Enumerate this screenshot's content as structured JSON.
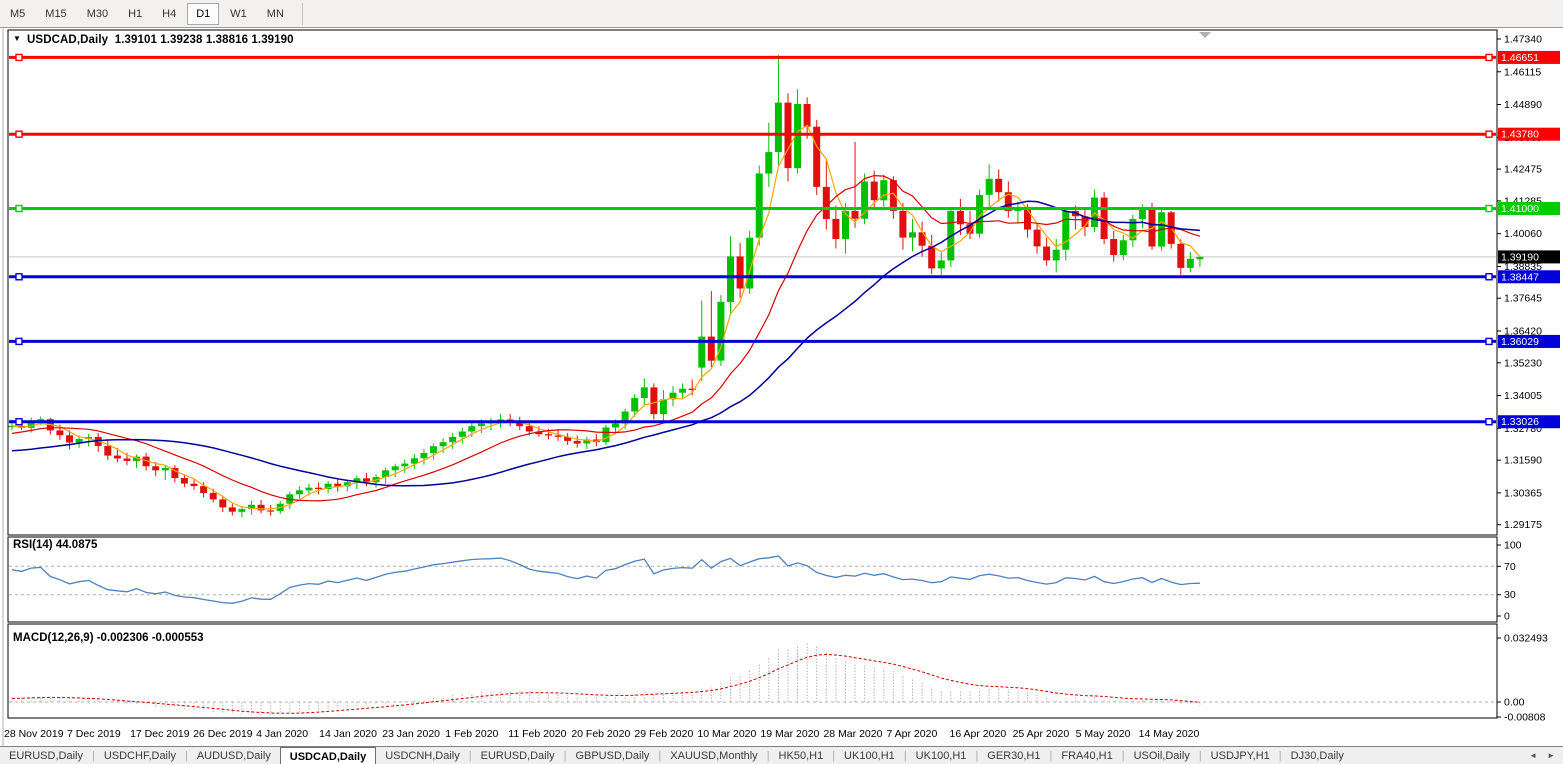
{
  "toolbar": {
    "timeframes": [
      "M5",
      "M15",
      "M30",
      "H1",
      "H4",
      "D1",
      "W1",
      "MN"
    ],
    "active": "D1"
  },
  "chart": {
    "symbol": "USDCAD,Daily",
    "ohlc_text": "1.39101 1.39238 1.38816 1.39190"
  },
  "indicators": {
    "rsi_label": "RSI(14) 44.0875",
    "macd_label": "MACD(12,26,9) -0.002306 -0.000553"
  },
  "price_axis": {
    "ticks": [
      "1.47340",
      "1.46115",
      "1.44890",
      "1.43665",
      "1.42475",
      "1.41285",
      "1.40060",
      "1.38835",
      "1.37645",
      "1.36420",
      "1.35230",
      "1.34005",
      "1.32780",
      "1.31590",
      "1.30365",
      "1.29175"
    ],
    "current": {
      "label": "1.39190",
      "value": 1.3919,
      "bg": "#000000",
      "text_color": "#ffffff"
    }
  },
  "rsi_axis": {
    "ticks": [
      100,
      70,
      30,
      0
    ],
    "levels": [
      70,
      30
    ]
  },
  "macd_axis": {
    "ticks": [
      {
        "label": "0.032493",
        "value": 0.032493
      },
      {
        "label": "0.00",
        "value": 0
      },
      {
        "label": "-0.00808",
        "value": -0.00808
      }
    ]
  },
  "date_axis": {
    "labels": [
      "28 Nov 2019",
      "7 Dec 2019",
      "17 Dec 2019",
      "26 Dec 2019",
      "4 Jan 2020",
      "14 Jan 2020",
      "23 Jan 2020",
      "1 Feb 2020",
      "11 Feb 2020",
      "20 Feb 2020",
      "29 Feb 2020",
      "10 Mar 2020",
      "19 Mar 2020",
      "28 Mar 2020",
      "7 Apr 2020",
      "16 Apr 2020",
      "25 Apr 2020",
      "5 May 2020",
      "14 May 2020"
    ]
  },
  "tabs": {
    "items": [
      "EURUSD,Daily",
      "USDCHF,Daily",
      "AUDUSD,Daily",
      "USDCAD,Daily",
      "USDCNH,Daily",
      "EURUSD,Daily",
      "GBPUSD,Daily",
      "XAUUSD,Monthly",
      "HK50,H1",
      "UK100,H1",
      "UK100,H1",
      "GER30,H1",
      "FRA40,H1",
      "USOil,Daily",
      "USDJPY,H1",
      "DJ30,Daily"
    ],
    "active_index": 3
  },
  "colors": {
    "bull": "#00c000",
    "bear": "#e01010",
    "ma_fast": "#ffa500",
    "ma_medium": "#dc0000",
    "ma_slow": "#0000a0",
    "rsi_line": "#4f81bd",
    "macd_hist": "#b4b4b4",
    "macd_signal": "#d00000",
    "current_line": "#c8c8c8",
    "level_dash": "#b0b0b0"
  },
  "chart_data": {
    "type": "candlestick",
    "symbol": "USDCAD",
    "timeframe": "Daily",
    "title": "USDCAD,Daily 1.39101 1.39238 1.38816 1.39190",
    "last_ohlc": {
      "open": 1.39101,
      "high": 1.39238,
      "low": 1.38816,
      "close": 1.3919
    },
    "ylim": [
      1.288,
      1.4768
    ],
    "x_range": [
      "28 Nov 2019",
      "20 May 2020"
    ],
    "h_lines": [
      {
        "label": "1.46651",
        "value": 1.46651,
        "color": "#ff0000"
      },
      {
        "label": "1.43780",
        "value": 1.4378,
        "color": "#ff0000"
      },
      {
        "label": "1.41000",
        "value": 1.41,
        "color": "#00cc00"
      },
      {
        "label": "1.38447",
        "value": 1.38447,
        "color": "#0000d8"
      },
      {
        "label": "1.36029",
        "value": 1.36029,
        "color": "#0000d8"
      },
      {
        "label": "1.33026",
        "value": 1.33026,
        "color": "#0000d8"
      }
    ],
    "moving_averages": [
      {
        "name": "fast",
        "period": 4,
        "color": "#ffa500",
        "width": 1.2
      },
      {
        "name": "medium",
        "period": 13,
        "color": "#dc0000",
        "width": 1.2
      },
      {
        "name": "slow",
        "period": 30,
        "color": "#0000a0",
        "width": 1.5
      }
    ],
    "rsi": {
      "period": 14,
      "last": 44.0875
    },
    "macd": {
      "fast": 12,
      "slow": 26,
      "signal": 9,
      "last": -0.002306,
      "last_signal": -0.000553,
      "max": 0.032493,
      "min": -0.00808
    },
    "seed_closes": [
      1.324,
      1.3255,
      1.327,
      1.3285,
      1.329,
      1.33,
      1.331,
      1.3295,
      1.328,
      1.326,
      1.324,
      1.322,
      1.32,
      1.318,
      1.315,
      1.312,
      1.309,
      1.3075,
      1.308,
      1.3095,
      1.311,
      1.313,
      1.315,
      1.3165,
      1.3175,
      1.316,
      1.3175,
      1.319,
      1.321,
      1.323,
      1.322,
      1.3235,
      1.325,
      1.3245,
      1.326,
      1.3275,
      1.329,
      1.33,
      1.3285,
      1.3278
    ],
    "candles": [
      [
        1.3285,
        1.331,
        1.327,
        1.3287
      ],
      [
        1.3287,
        1.3305,
        1.3272,
        1.328
      ],
      [
        1.328,
        1.3318,
        1.3262,
        1.3305
      ],
      [
        1.3305,
        1.3322,
        1.329,
        1.3312
      ],
      [
        1.3312,
        1.3317,
        1.3255,
        1.327
      ],
      [
        1.327,
        1.3292,
        1.3235,
        1.3252
      ],
      [
        1.3252,
        1.327,
        1.32,
        1.3225
      ],
      [
        1.3225,
        1.3252,
        1.3205,
        1.3238
      ],
      [
        1.3238,
        1.3257,
        1.321,
        1.3246
      ],
      [
        1.3246,
        1.326,
        1.319,
        1.3212
      ],
      [
        1.3212,
        1.3232,
        1.316,
        1.3176
      ],
      [
        1.3176,
        1.3205,
        1.315,
        1.3165
      ],
      [
        1.3165,
        1.3186,
        1.314,
        1.3156
      ],
      [
        1.3156,
        1.318,
        1.313,
        1.3172
      ],
      [
        1.3172,
        1.3186,
        1.312,
        1.3136
      ],
      [
        1.3136,
        1.3152,
        1.31,
        1.3121
      ],
      [
        1.3121,
        1.3142,
        1.3085,
        1.313
      ],
      [
        1.313,
        1.314,
        1.3075,
        1.3092
      ],
      [
        1.3092,
        1.3106,
        1.3058,
        1.3071
      ],
      [
        1.3071,
        1.3086,
        1.3048,
        1.3062
      ],
      [
        1.3062,
        1.3076,
        1.302,
        1.3036
      ],
      [
        1.3036,
        1.3052,
        1.3,
        1.3012
      ],
      [
        1.3012,
        1.3026,
        1.2965,
        1.2982
      ],
      [
        1.2982,
        1.2996,
        1.2952,
        1.2966
      ],
      [
        1.2966,
        1.2986,
        1.2945,
        1.2976
      ],
      [
        1.2976,
        1.3006,
        1.2955,
        1.2992
      ],
      [
        1.2992,
        1.301,
        1.296,
        1.2971
      ],
      [
        1.2971,
        1.2991,
        1.2951,
        1.2969
      ],
      [
        1.2969,
        1.3006,
        1.2958,
        1.2996
      ],
      [
        1.2996,
        1.3041,
        1.2976,
        1.3031
      ],
      [
        1.3031,
        1.3061,
        1.3015,
        1.3046
      ],
      [
        1.3046,
        1.3071,
        1.3026,
        1.3056
      ],
      [
        1.3056,
        1.3076,
        1.3031,
        1.3051
      ],
      [
        1.3051,
        1.3081,
        1.3036,
        1.3071
      ],
      [
        1.3071,
        1.3091,
        1.3041,
        1.3061
      ],
      [
        1.3061,
        1.3086,
        1.3042,
        1.3076
      ],
      [
        1.3076,
        1.3101,
        1.3051,
        1.3091
      ],
      [
        1.3091,
        1.3111,
        1.3061,
        1.3076
      ],
      [
        1.3076,
        1.3106,
        1.3056,
        1.3096
      ],
      [
        1.3096,
        1.3131,
        1.3071,
        1.3121
      ],
      [
        1.3121,
        1.3146,
        1.3096,
        1.3136
      ],
      [
        1.3136,
        1.3161,
        1.3111,
        1.3146
      ],
      [
        1.3146,
        1.3181,
        1.3126,
        1.3166
      ],
      [
        1.3166,
        1.3201,
        1.3141,
        1.3186
      ],
      [
        1.3186,
        1.3221,
        1.3161,
        1.3211
      ],
      [
        1.3211,
        1.3241,
        1.3186,
        1.3226
      ],
      [
        1.3226,
        1.3261,
        1.3201,
        1.3246
      ],
      [
        1.3246,
        1.3281,
        1.3221,
        1.3266
      ],
      [
        1.3266,
        1.3301,
        1.3246,
        1.3286
      ],
      [
        1.3286,
        1.3311,
        1.3261,
        1.3296
      ],
      [
        1.3296,
        1.3316,
        1.3271,
        1.3301
      ],
      [
        1.3301,
        1.3331,
        1.3281,
        1.3311
      ],
      [
        1.3311,
        1.3331,
        1.3286,
        1.3301
      ],
      [
        1.3301,
        1.3321,
        1.3271,
        1.3286
      ],
      [
        1.3286,
        1.3301,
        1.3251,
        1.3266
      ],
      [
        1.3266,
        1.3286,
        1.3246,
        1.3256
      ],
      [
        1.3256,
        1.3276,
        1.3236,
        1.3251
      ],
      [
        1.3251,
        1.3271,
        1.3231,
        1.3246
      ],
      [
        1.3246,
        1.3261,
        1.3216,
        1.3231
      ],
      [
        1.3231,
        1.3251,
        1.3206,
        1.3221
      ],
      [
        1.3221,
        1.3246,
        1.3201,
        1.3236
      ],
      [
        1.3236,
        1.3256,
        1.3211,
        1.3226
      ],
      [
        1.3226,
        1.3291,
        1.3216,
        1.3281
      ],
      [
        1.3281,
        1.3311,
        1.3256,
        1.3296
      ],
      [
        1.3296,
        1.3351,
        1.3276,
        1.3341
      ],
      [
        1.3341,
        1.3406,
        1.3321,
        1.3391
      ],
      [
        1.3391,
        1.3465,
        1.3366,
        1.3431
      ],
      [
        1.3431,
        1.3446,
        1.3311,
        1.3331
      ],
      [
        1.3331,
        1.3421,
        1.3306,
        1.3386
      ],
      [
        1.3386,
        1.3436,
        1.3361,
        1.3411
      ],
      [
        1.3411,
        1.3446,
        1.3386,
        1.3426
      ],
      [
        1.3426,
        1.3461,
        1.3401,
        1.3421
      ],
      [
        1.3505,
        1.3755,
        1.3455,
        1.3621
      ],
      [
        1.3621,
        1.3791,
        1.3506,
        1.3531
      ],
      [
        1.3531,
        1.3776,
        1.3511,
        1.3751
      ],
      [
        1.3751,
        1.3996,
        1.3701,
        1.3921
      ],
      [
        1.3921,
        1.3971,
        1.3766,
        1.3801
      ],
      [
        1.3801,
        1.4016,
        1.3781,
        1.3991
      ],
      [
        1.3991,
        1.4261,
        1.3961,
        1.4231
      ],
      [
        1.4231,
        1.4421,
        1.4181,
        1.4311
      ],
      [
        1.4311,
        1.4674,
        1.4261,
        1.4496
      ],
      [
        1.4496,
        1.4531,
        1.4201,
        1.4251
      ],
      [
        1.4251,
        1.4546,
        1.4231,
        1.4491
      ],
      [
        1.4491,
        1.4516,
        1.4361,
        1.4406
      ],
      [
        1.4406,
        1.4431,
        1.4151,
        1.4181
      ],
      [
        1.4181,
        1.4281,
        1.4021,
        1.4061
      ],
      [
        1.4061,
        1.4111,
        1.3951,
        1.3986
      ],
      [
        1.3986,
        1.4121,
        1.3931,
        1.4091
      ],
      [
        1.4091,
        1.4349,
        1.4028,
        1.4062
      ],
      [
        1.4062,
        1.4231,
        1.4041,
        1.4201
      ],
      [
        1.4201,
        1.4241,
        1.4101,
        1.4131
      ],
      [
        1.4131,
        1.4226,
        1.4096,
        1.4206
      ],
      [
        1.4206,
        1.4221,
        1.4061,
        1.4091
      ],
      [
        1.4091,
        1.4121,
        1.3946,
        1.3991
      ],
      [
        1.3991,
        1.4061,
        1.3941,
        1.4011
      ],
      [
        1.4011,
        1.4051,
        1.3921,
        1.3961
      ],
      [
        1.3961,
        1.4001,
        1.3855,
        1.3876
      ],
      [
        1.3876,
        1.3936,
        1.3851,
        1.3906
      ],
      [
        1.3906,
        1.4106,
        1.3881,
        1.4091
      ],
      [
        1.4091,
        1.4136,
        1.4001,
        1.4041
      ],
      [
        1.4041,
        1.4091,
        1.3986,
        1.4006
      ],
      [
        1.4006,
        1.4171,
        1.3991,
        1.4151
      ],
      [
        1.4151,
        1.4265,
        1.4106,
        1.4211
      ],
      [
        1.4211,
        1.4246,
        1.4126,
        1.4161
      ],
      [
        1.4161,
        1.4201,
        1.4066,
        1.4091
      ],
      [
        1.4091,
        1.4126,
        1.4046,
        1.4106
      ],
      [
        1.4106,
        1.4116,
        1.3991,
        1.4021
      ],
      [
        1.4021,
        1.4046,
        1.3931,
        1.3958
      ],
      [
        1.3958,
        1.3991,
        1.3886,
        1.3906
      ],
      [
        1.3906,
        1.3986,
        1.3861,
        1.3946
      ],
      [
        1.3946,
        1.4106,
        1.3906,
        1.4091
      ],
      [
        1.4091,
        1.4111,
        1.4021,
        1.4071
      ],
      [
        1.4071,
        1.4096,
        1.3996,
        1.4031
      ],
      [
        1.4031,
        1.4171,
        1.4011,
        1.4141
      ],
      [
        1.4141,
        1.4161,
        1.3966,
        1.3986
      ],
      [
        1.3986,
        1.4016,
        1.3901,
        1.3926
      ],
      [
        1.3926,
        1.4001,
        1.3906,
        1.3981
      ],
      [
        1.3981,
        1.4076,
        1.3956,
        1.4061
      ],
      [
        1.4061,
        1.4116,
        1.4026,
        1.4101
      ],
      [
        1.4101,
        1.4121,
        1.3946,
        1.3958
      ],
      [
        1.3958,
        1.4095,
        1.3942,
        1.4086
      ],
      [
        1.4086,
        1.4092,
        1.395,
        1.3968
      ],
      [
        1.3968,
        1.3985,
        1.3852,
        1.3878
      ],
      [
        1.3878,
        1.3938,
        1.3862,
        1.3912
      ],
      [
        1.39101,
        1.39238,
        1.38816,
        1.3919
      ]
    ]
  }
}
